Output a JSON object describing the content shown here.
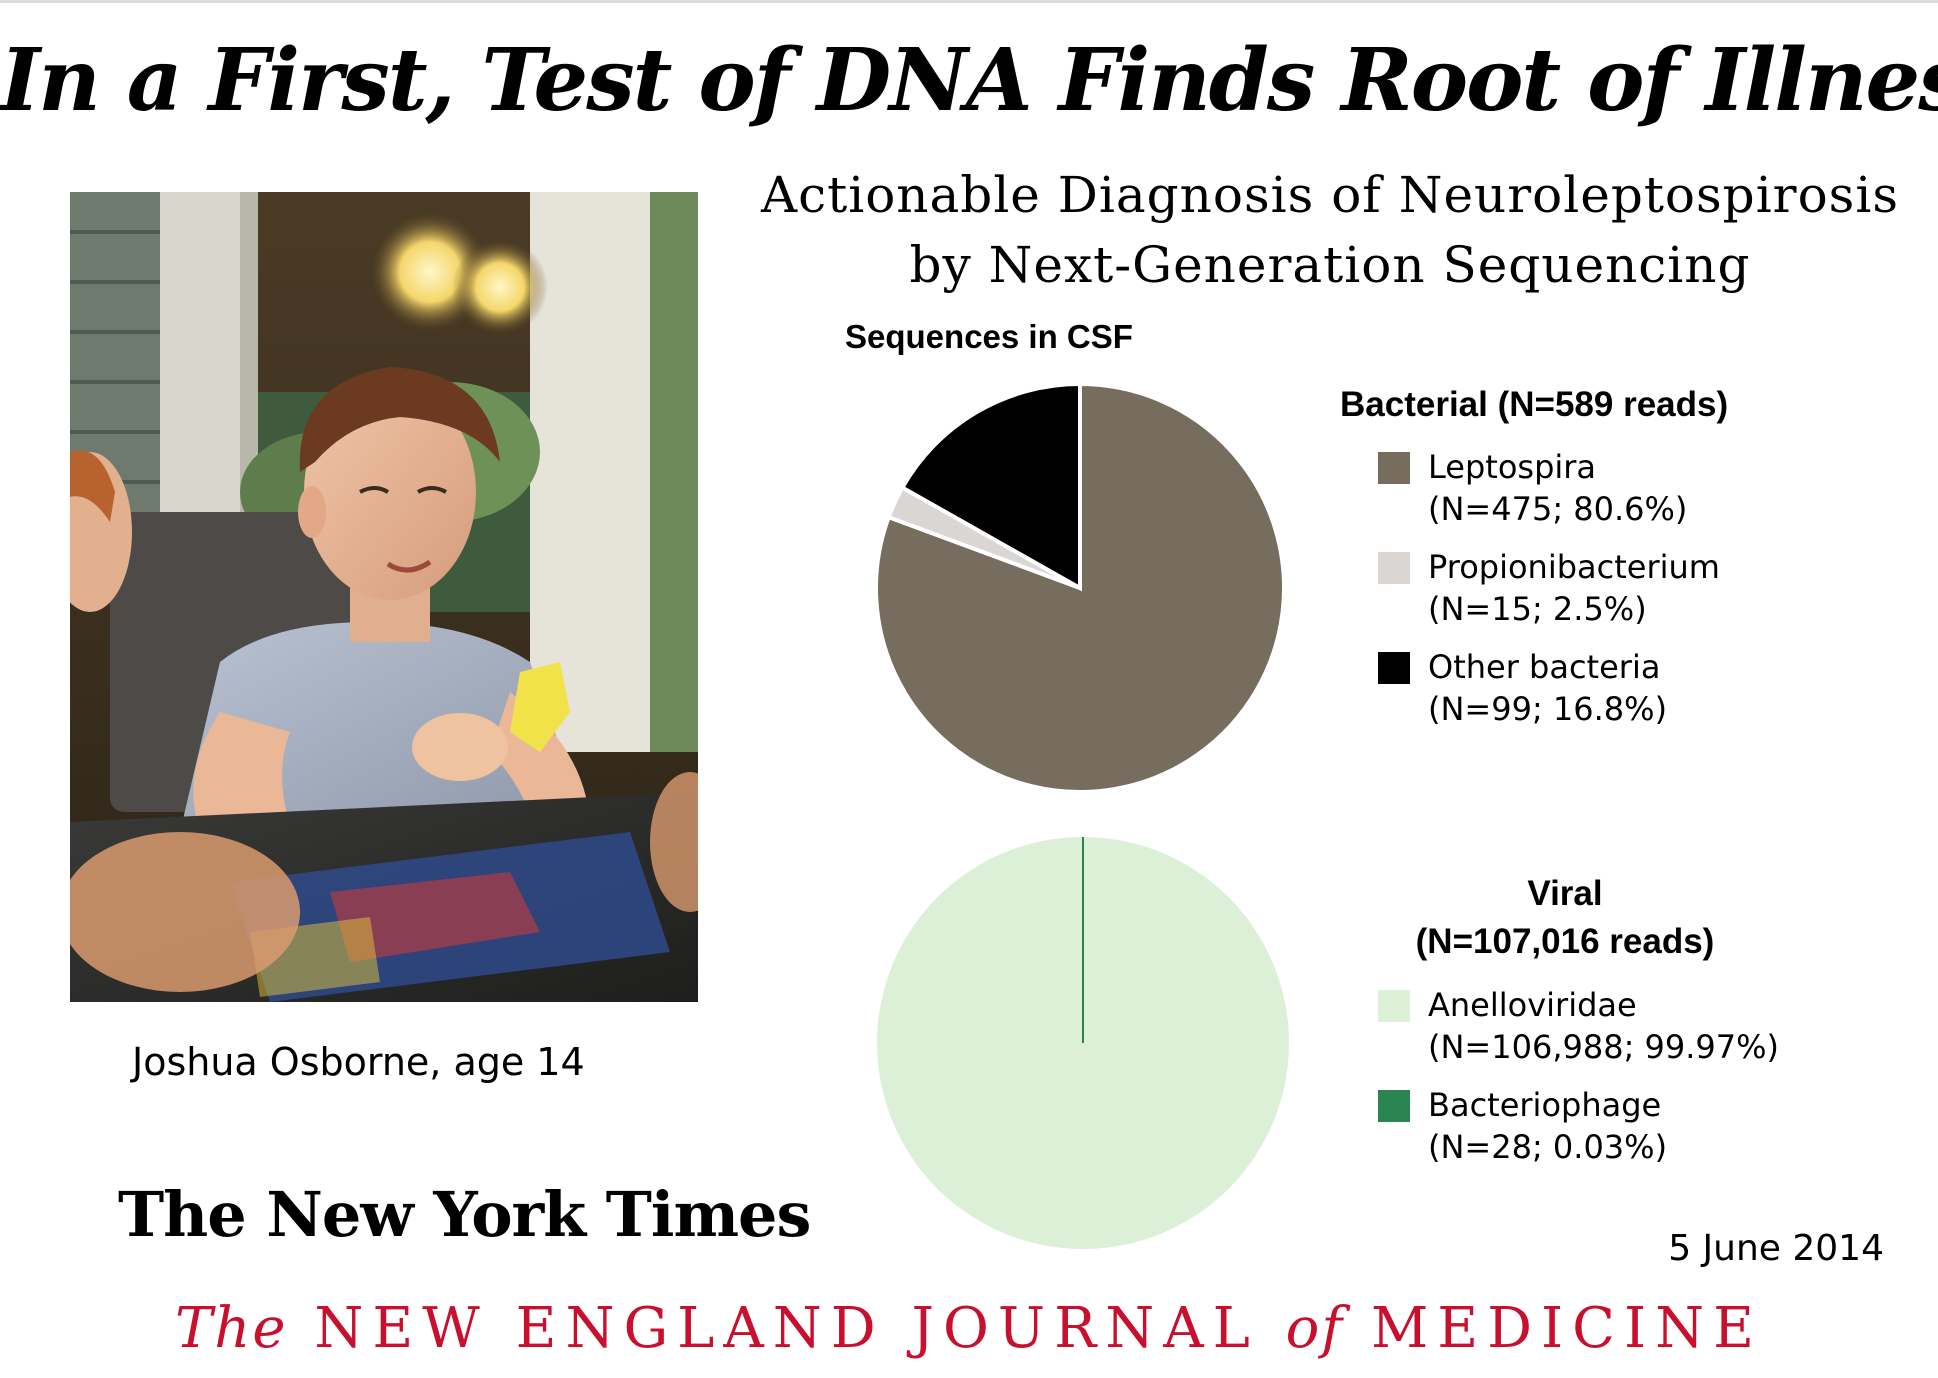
{
  "headline": "In a First, Test of DNA Finds Root of Illness",
  "subtitle": {
    "line1": "Actionable Diagnosis of Neuroleptospirosis",
    "line2": "by Next-Generation Sequencing"
  },
  "photo_caption": "Joshua Osborne, age 14",
  "newspaper": "The New York Times",
  "date": "5 June 2014",
  "journal": {
    "the": "The",
    "part1": "NEW ENGLAND JOURNAL",
    "of": "of",
    "part2": "MEDICINE"
  },
  "colors": {
    "leptospira": "#766d5f",
    "propionibacterium": "#d9d6d4",
    "other_bacteria": "#000000",
    "anelloviridae": "#dcf0d8",
    "bacteriophage": "#2a8450",
    "journal_red": "#c8102e"
  },
  "chart_data": [
    {
      "type": "pie",
      "title": "Sequences in CSF",
      "legend_title": "Bacterial (N=589 reads)",
      "categories": [
        "Leptospira",
        "Propionibacterium",
        "Other bacteria"
      ],
      "values": [
        475,
        15,
        99
      ],
      "percent": [
        80.6,
        2.5,
        16.8
      ],
      "labels": [
        {
          "name": "Leptospira",
          "detail": "(N=475; 80.6%)"
        },
        {
          "name": "Propionibacterium",
          "detail": "(N=15; 2.5%)"
        },
        {
          "name": "Other bacteria",
          "detail": "(N=99; 16.8%)"
        }
      ]
    },
    {
      "type": "pie",
      "legend_title_line1": "Viral",
      "legend_title_line2": "(N=107,016 reads)",
      "categories": [
        "Anelloviridae",
        "Bacteriophage"
      ],
      "values": [
        106988,
        28
      ],
      "percent": [
        99.97,
        0.03
      ],
      "labels": [
        {
          "name": "Anelloviridae",
          "detail": "(N=106,988; 99.97%)"
        },
        {
          "name": "Bacteriophage",
          "detail": "(N=28; 0.03%)"
        }
      ]
    }
  ]
}
